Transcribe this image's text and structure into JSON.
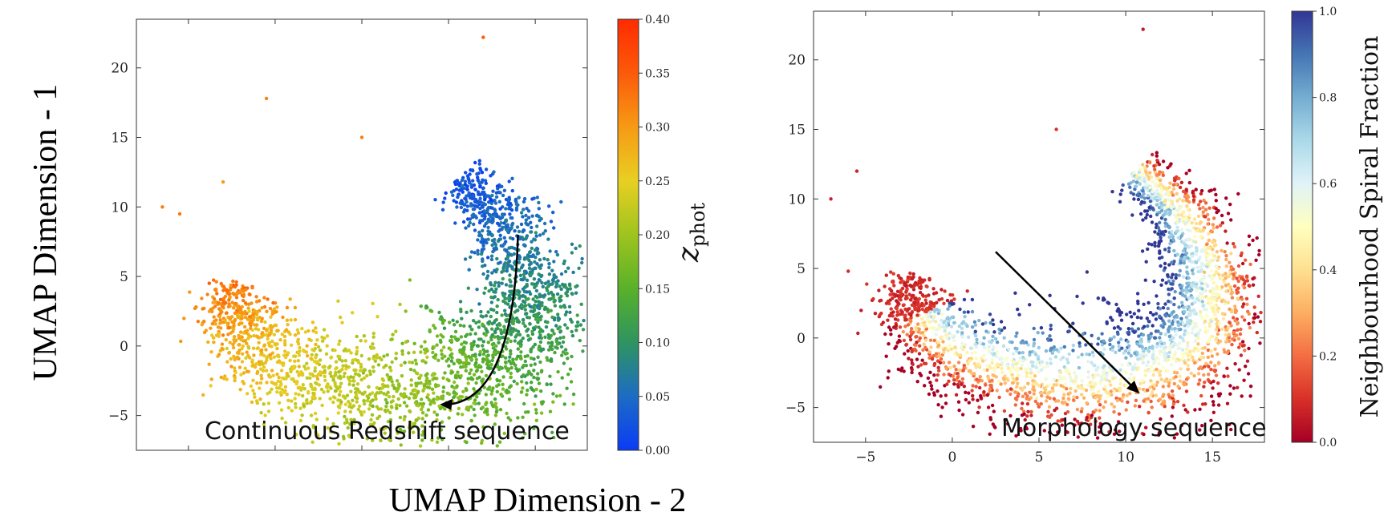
{
  "figure": {
    "ylabel": "UMAP Dimension - 1",
    "xlabel": "UMAP Dimension - 2"
  },
  "chart_data": [
    {
      "type": "scatter",
      "panel": "left",
      "xlabel": "UMAP Dimension - 2",
      "ylabel": "UMAP Dimension - 1",
      "xlim": [
        -8,
        18
      ],
      "ylim": [
        -7.5,
        23.5
      ],
      "yticks": [
        -5,
        0,
        5,
        10,
        15,
        20
      ],
      "xticks": [],
      "color_variable": "z_phot",
      "colorbar": {
        "label": "zphot",
        "range": [
          0.0,
          0.4
        ],
        "ticks": [
          "0.00",
          "0.05",
          "0.10",
          "0.15",
          "0.20",
          "0.25",
          "0.30",
          "0.35",
          "0.40"
        ],
        "colors": [
          "#0a3cf5",
          "#1d6cc4",
          "#2e9460",
          "#59b12a",
          "#9ec41e",
          "#e8cf22",
          "#f79a14",
          "#fb5a0a",
          "#ff2b00"
        ]
      },
      "annotation": "Continuous Redshift sequence",
      "arrow": {
        "from": [
          14.0,
          8.0
        ],
        "to": [
          9.5,
          -4.2
        ],
        "curved": true
      },
      "series_sketch": {
        "description": "dense crescent of galaxies, upper-right branch blue (low z), bottom green, left branch orange-red (high z)",
        "outliers": [
          [
            12.0,
            22.2
          ],
          [
            -3.0,
            11.8
          ],
          [
            -0.5,
            17.8
          ],
          [
            5.0,
            15.0
          ],
          [
            -6.5,
            10.0
          ],
          [
            -5.5,
            9.5
          ]
        ]
      }
    },
    {
      "type": "scatter",
      "panel": "right",
      "xlabel": "UMAP Dimension - 2",
      "ylabel": "UMAP Dimension - 1",
      "xlim": [
        -8,
        18
      ],
      "ylim": [
        -7.5,
        23.5
      ],
      "xticks": [
        -5,
        0,
        5,
        10,
        15
      ],
      "yticks": [
        -5,
        0,
        5,
        10,
        15,
        20
      ],
      "color_variable": "Neighbourhood Spiral Fraction",
      "colorbar": {
        "label": "Neighbourhood Spiral Fraction",
        "range": [
          0.0,
          1.0
        ],
        "ticks": [
          "0.0",
          "0.2",
          "0.4",
          "0.6",
          "0.8",
          "1.0"
        ],
        "colors": [
          "#a50026",
          "#d73027",
          "#f46d43",
          "#fdae61",
          "#fee090",
          "#ffffbf",
          "#e0f3f8",
          "#abd9e9",
          "#74add1",
          "#4575b4",
          "#313695"
        ]
      },
      "annotation": "Morphology sequence",
      "arrow": {
        "from": [
          2.5,
          6.2
        ],
        "to": [
          10.8,
          -4.0
        ],
        "curved": false
      },
      "series_sketch": {
        "description": "same crescent; left tip dark red (low spiral fraction), inner band red/orange, outer rim blue (high spiral fraction)",
        "outliers": [
          [
            11.0,
            22.2
          ],
          [
            -7.0,
            10.0
          ],
          [
            -5.5,
            12.0
          ],
          [
            -6.0,
            4.8
          ],
          [
            6.0,
            15.0
          ]
        ]
      }
    }
  ]
}
